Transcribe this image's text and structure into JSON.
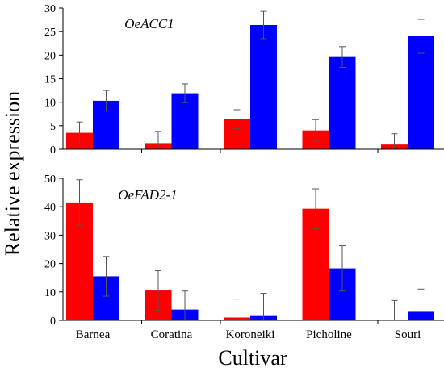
{
  "figure": {
    "ylabel": "Relative expression",
    "xlabel": "Cultivar"
  },
  "chart_data": [
    {
      "type": "bar",
      "title": "OeACC1",
      "categories": [
        "Barnea",
        "Coratina",
        "Koroneiki",
        "Picholine",
        "Souri"
      ],
      "ylim": [
        0,
        30
      ],
      "yticks": [
        0,
        5,
        10,
        15,
        20,
        25,
        30
      ],
      "grid": false,
      "series": [
        {
          "color": "#ff0000",
          "values": [
            3.5,
            1.3,
            6.4,
            4.0,
            1.0
          ],
          "errors": [
            2.3,
            2.5,
            2.0,
            2.3,
            2.3
          ]
        },
        {
          "color": "#0000ff",
          "values": [
            10.3,
            11.9,
            26.4,
            19.6,
            24.0
          ],
          "errors": [
            2.2,
            2.0,
            2.9,
            2.2,
            3.6
          ]
        }
      ]
    },
    {
      "type": "bar",
      "title": "OeFAD2-1",
      "categories": [
        "Barnea",
        "Coratina",
        "Koroneiki",
        "Picholine",
        "Souri"
      ],
      "ylim": [
        0,
        50
      ],
      "yticks": [
        0,
        10,
        20,
        30,
        40,
        50
      ],
      "grid": false,
      "series": [
        {
          "color": "#ff0000",
          "values": [
            41.5,
            10.5,
            1.0,
            39.3,
            0.0
          ],
          "errors": [
            8.0,
            7.0,
            6.5,
            7.0,
            7.0
          ]
        },
        {
          "color": "#0000ff",
          "values": [
            15.5,
            3.8,
            1.8,
            18.3,
            3.0
          ],
          "errors": [
            7.0,
            6.5,
            7.7,
            8.0,
            8.0
          ]
        }
      ]
    }
  ]
}
